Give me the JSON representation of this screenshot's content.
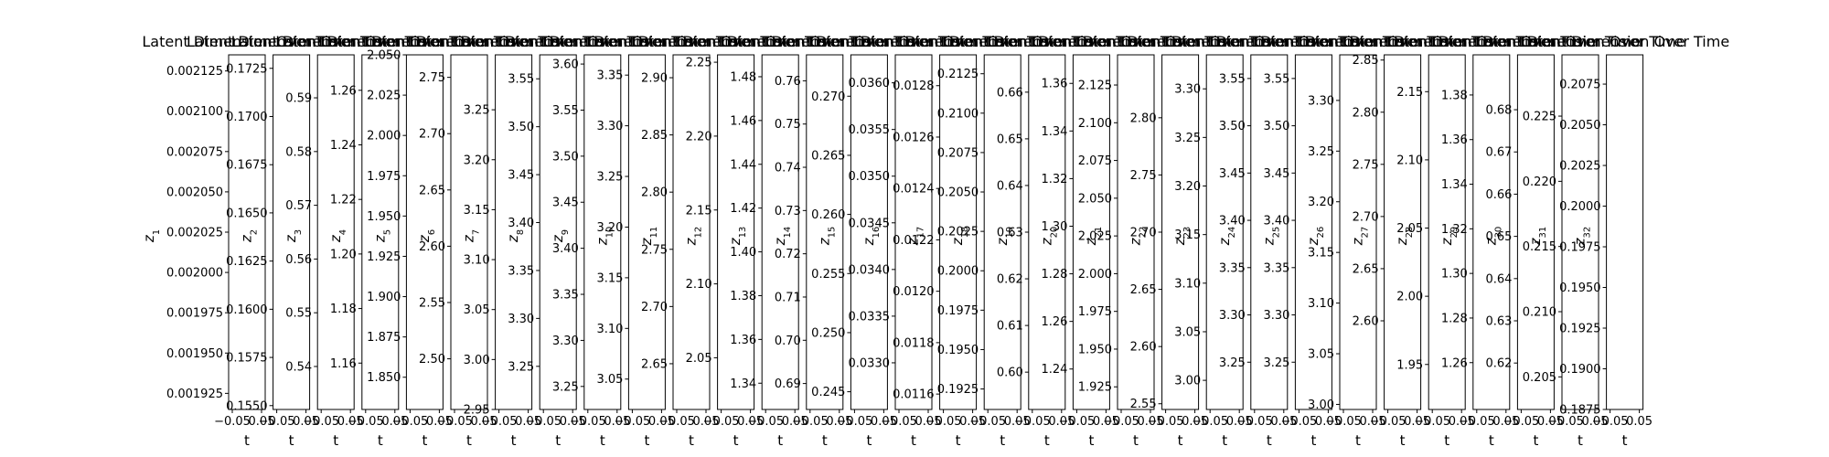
{
  "chart_data": {
    "type": "line",
    "grid": false,
    "shared_xlabel": "t",
    "shared_xtick_labels": [
      "−0.05",
      "0.05"
    ],
    "subplot_title": "Latent Dimension Over Time",
    "panels": [
      {
        "ylabel": "z_1",
        "yticks": [
          "0.001925",
          "0.001950",
          "0.001975",
          "0.002000",
          "0.002025",
          "0.002050",
          "0.002075",
          "0.002100",
          "0.002125"
        ],
        "ylim": [
          0.001915,
          0.002135
        ]
      },
      {
        "ylabel": "z_2",
        "yticks": [
          "0.1550",
          "0.1575",
          "0.1600",
          "0.1625",
          "0.1650",
          "0.1675",
          "0.1700",
          "0.1725"
        ],
        "ylim": [
          0.1548,
          0.1732
        ]
      },
      {
        "ylabel": "z_3",
        "yticks": [
          "0.54",
          "0.55",
          "0.56",
          "0.57",
          "0.58",
          "0.59"
        ],
        "ylim": [
          0.532,
          0.598
        ]
      },
      {
        "ylabel": "z_4",
        "yticks": [
          "1.16",
          "1.18",
          "1.20",
          "1.22",
          "1.24",
          "1.26"
        ],
        "ylim": [
          1.143,
          1.273
        ]
      },
      {
        "ylabel": "z_5",
        "yticks": [
          "1.850",
          "1.875",
          "1.900",
          "1.925",
          "1.950",
          "1.975",
          "2.000",
          "2.025",
          "2.050"
        ],
        "ylim": [
          1.83,
          2.05
        ]
      },
      {
        "ylabel": "z_6",
        "yticks": [
          "2.50",
          "2.55",
          "2.60",
          "2.65",
          "2.70",
          "2.75"
        ],
        "ylim": [
          2.455,
          2.77
        ]
      },
      {
        "ylabel": "z_7",
        "yticks": [
          "2.95",
          "3.00",
          "3.05",
          "3.10",
          "3.15",
          "3.20",
          "3.25"
        ],
        "ylim": [
          2.95,
          3.305
        ]
      },
      {
        "ylabel": "z_8",
        "yticks": [
          "3.25",
          "3.30",
          "3.35",
          "3.40",
          "3.45",
          "3.50",
          "3.55"
        ],
        "ylim": [
          3.205,
          3.575
        ]
      },
      {
        "ylabel": "z_9",
        "yticks": [
          "3.25",
          "3.30",
          "3.35",
          "3.40",
          "3.45",
          "3.50",
          "3.55",
          "3.60"
        ],
        "ylim": [
          3.225,
          3.61
        ]
      },
      {
        "ylabel": "z_10",
        "yticks": [
          "3.05",
          "3.10",
          "3.15",
          "3.20",
          "3.25",
          "3.30",
          "3.35"
        ],
        "ylim": [
          3.02,
          3.37
        ]
      },
      {
        "ylabel": "z_11",
        "yticks": [
          "2.65",
          "2.70",
          "2.75",
          "2.80",
          "2.85",
          "2.90"
        ],
        "ylim": [
          2.61,
          2.92
        ]
      },
      {
        "ylabel": "z_12",
        "yticks": [
          "2.05",
          "2.10",
          "2.15",
          "2.20",
          "2.25"
        ],
        "ylim": [
          2.015,
          2.255
        ]
      },
      {
        "ylabel": "z_13",
        "yticks": [
          "1.34",
          "1.36",
          "1.38",
          "1.40",
          "1.42",
          "1.44",
          "1.46",
          "1.48"
        ],
        "ylim": [
          1.328,
          1.49
        ]
      },
      {
        "ylabel": "z_14",
        "yticks": [
          "0.69",
          "0.70",
          "0.71",
          "0.72",
          "0.73",
          "0.74",
          "0.75",
          "0.76"
        ],
        "ylim": [
          0.684,
          0.766
        ]
      },
      {
        "ylabel": "z_15",
        "yticks": [
          "0.245",
          "0.250",
          "0.255",
          "0.260",
          "0.265",
          "0.270"
        ],
        "ylim": [
          0.2435,
          0.2735
        ]
      },
      {
        "ylabel": "z_16",
        "yticks": [
          "0.0330",
          "0.0335",
          "0.0340",
          "0.0345",
          "0.0350",
          "0.0355",
          "0.0360"
        ],
        "ylim": [
          0.0325,
          0.0363
        ]
      },
      {
        "ylabel": "z_17",
        "yticks": [
          "0.0116",
          "0.0118",
          "0.0120",
          "0.0122",
          "0.0124",
          "0.0126",
          "0.0128"
        ],
        "ylim": [
          0.01154,
          0.01292
        ]
      },
      {
        "ylabel": "z_18",
        "yticks": [
          "0.1925",
          "0.1950",
          "0.1975",
          "0.2000",
          "0.2025",
          "0.2050",
          "0.2075",
          "0.2100",
          "0.2125"
        ],
        "ylim": [
          0.1912,
          0.2137
        ]
      },
      {
        "ylabel": "z_19",
        "yticks": [
          "0.60",
          "0.61",
          "0.62",
          "0.63",
          "0.64",
          "0.65",
          "0.66"
        ],
        "ylim": [
          0.592,
          0.668
        ]
      },
      {
        "ylabel": "z_20",
        "yticks": [
          "1.24",
          "1.26",
          "1.28",
          "1.30",
          "1.32",
          "1.34",
          "1.36"
        ],
        "ylim": [
          1.223,
          1.372
        ]
      },
      {
        "ylabel": "z_21",
        "yticks": [
          "1.925",
          "1.950",
          "1.975",
          "2.000",
          "2.025",
          "2.050",
          "2.075",
          "2.100",
          "2.125"
        ],
        "ylim": [
          1.91,
          2.145
        ]
      },
      {
        "ylabel": "z_22",
        "yticks": [
          "2.55",
          "2.60",
          "2.65",
          "2.70",
          "2.75",
          "2.80"
        ],
        "ylim": [
          2.545,
          2.855
        ]
      },
      {
        "ylabel": "z_23",
        "yticks": [
          "3.00",
          "3.05",
          "3.10",
          "3.15",
          "3.20",
          "3.25",
          "3.30"
        ],
        "ylim": [
          2.97,
          3.335
        ]
      },
      {
        "ylabel": "z_24",
        "yticks": [
          "3.25",
          "3.30",
          "3.35",
          "3.40",
          "3.45",
          "3.50",
          "3.55"
        ],
        "ylim": [
          3.2,
          3.575
        ]
      },
      {
        "ylabel": "z_25",
        "yticks": [
          "3.25",
          "3.30",
          "3.35",
          "3.40",
          "3.45",
          "3.50",
          "3.55"
        ],
        "ylim": [
          3.2,
          3.575
        ]
      },
      {
        "ylabel": "z_26",
        "yticks": [
          "3.00",
          "3.05",
          "3.10",
          "3.15",
          "3.20",
          "3.25",
          "3.30"
        ],
        "ylim": [
          2.995,
          3.345
        ]
      },
      {
        "ylabel": "z_27",
        "yticks": [
          "2.60",
          "2.65",
          "2.70",
          "2.75",
          "2.80",
          "2.85"
        ],
        "ylim": [
          2.515,
          2.855
        ]
      },
      {
        "ylabel": "z_28",
        "yticks": [
          "1.95",
          "2.00",
          "2.05",
          "2.10",
          "2.15"
        ],
        "ylim": [
          1.917,
          2.177
        ]
      },
      {
        "ylabel": "z_29",
        "yticks": [
          "1.26",
          "1.28",
          "1.30",
          "1.32",
          "1.34",
          "1.36",
          "1.38"
        ],
        "ylim": [
          1.239,
          1.398
        ]
      },
      {
        "ylabel": "z_30",
        "yticks": [
          "0.62",
          "0.63",
          "0.64",
          "0.65",
          "0.66",
          "0.67",
          "0.68"
        ],
        "ylim": [
          0.609,
          0.693
        ]
      },
      {
        "ylabel": "z_31",
        "yticks": [
          "0.205",
          "0.210",
          "0.215",
          "0.220",
          "0.225"
        ],
        "ylim": [
          0.2025,
          0.2297
        ]
      },
      {
        "ylabel": "z_32",
        "yticks": [
          "0.1875",
          "0.1900",
          "0.1925",
          "0.1950",
          "0.1975",
          "0.2000",
          "0.2025",
          "0.2050",
          "0.2075"
        ],
        "ylim": [
          0.1875,
          0.2093
        ]
      }
    ]
  }
}
